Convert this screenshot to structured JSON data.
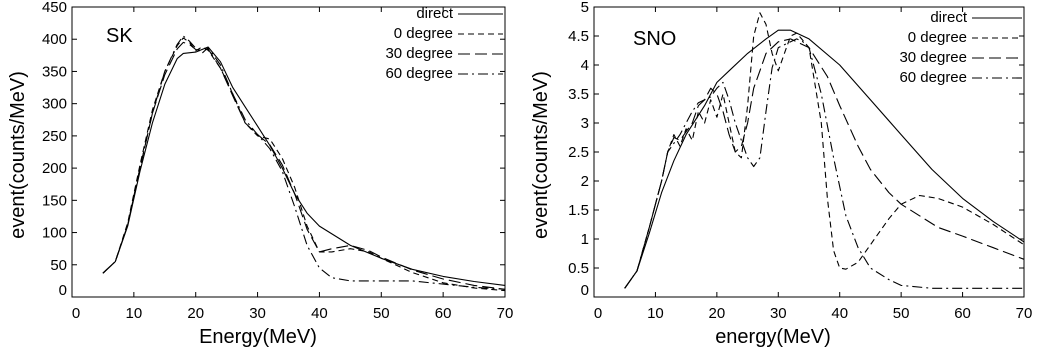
{
  "chart_data": [
    {
      "type": "line",
      "panel_label": "SK",
      "xlabel": "Energy(MeV)",
      "ylabel": "event(counts/MeV)",
      "xlim": [
        0,
        70
      ],
      "ylim": [
        0,
        450
      ],
      "xticks": [
        "0",
        "10",
        "20",
        "30",
        "40",
        "50",
        "60",
        "70"
      ],
      "yticks": [
        "0",
        "50",
        "100",
        "150",
        "200",
        "250",
        "300",
        "350",
        "400",
        "450"
      ],
      "legend_position": "top-right",
      "series": [
        {
          "name": "direct",
          "dash": "solid",
          "points": [
            [
              5,
              37
            ],
            [
              7,
              55
            ],
            [
              9,
              110
            ],
            [
              11,
              195
            ],
            [
              13,
              270
            ],
            [
              15,
              330
            ],
            [
              17,
              370
            ],
            [
              18,
              378
            ],
            [
              20,
              380
            ],
            [
              22,
              388
            ],
            [
              24,
              365
            ],
            [
              26,
              325
            ],
            [
              28,
              295
            ],
            [
              30,
              265
            ],
            [
              32,
              235
            ],
            [
              34,
              200
            ],
            [
              36,
              160
            ],
            [
              38,
              130
            ],
            [
              40,
              110
            ],
            [
              45,
              80
            ],
            [
              50,
              60
            ],
            [
              55,
              43
            ],
            [
              60,
              32
            ],
            [
              65,
              24
            ],
            [
              70,
              18
            ]
          ]
        },
        {
          "name": "0 degree",
          "dash": "short",
          "points": [
            [
              5,
              37
            ],
            [
              7,
              55
            ],
            [
              9,
              115
            ],
            [
              11,
              205
            ],
            [
              13,
              290
            ],
            [
              15,
              350
            ],
            [
              17,
              390
            ],
            [
              18,
              402
            ],
            [
              19,
              395
            ],
            [
              20,
              382
            ],
            [
              21,
              388
            ],
            [
              22,
              383
            ],
            [
              24,
              355
            ],
            [
              26,
              315
            ],
            [
              28,
              270
            ],
            [
              30,
              250
            ],
            [
              32,
              245
            ],
            [
              34,
              215
            ],
            [
              36,
              170
            ],
            [
              38,
              110
            ],
            [
              40,
              70
            ],
            [
              42,
              70
            ],
            [
              45,
              75
            ],
            [
              48,
              70
            ],
            [
              50,
              60
            ],
            [
              55,
              38
            ],
            [
              60,
              22
            ],
            [
              65,
              14
            ],
            [
              70,
              10
            ]
          ]
        },
        {
          "name": "30 degree",
          "dash": "long",
          "points": [
            [
              5,
              37
            ],
            [
              7,
              55
            ],
            [
              9,
              112
            ],
            [
              11,
              200
            ],
            [
              13,
              285
            ],
            [
              15,
              345
            ],
            [
              17,
              385
            ],
            [
              18,
              395
            ],
            [
              19,
              392
            ],
            [
              20,
              384
            ],
            [
              21,
              383
            ],
            [
              22,
              385
            ],
            [
              24,
              355
            ],
            [
              26,
              312
            ],
            [
              28,
              270
            ],
            [
              30,
              252
            ],
            [
              32,
              236
            ],
            [
              34,
              205
            ],
            [
              36,
              160
            ],
            [
              38,
              105
            ],
            [
              40,
              70
            ],
            [
              42,
              75
            ],
            [
              45,
              80
            ],
            [
              48,
              72
            ],
            [
              50,
              62
            ],
            [
              55,
              42
            ],
            [
              60,
              28
            ],
            [
              65,
              18
            ],
            [
              70,
              12
            ]
          ]
        },
        {
          "name": "60 degree",
          "dash": "dashdot",
          "points": [
            [
              5,
              37
            ],
            [
              7,
              55
            ],
            [
              9,
              112
            ],
            [
              11,
              200
            ],
            [
              13,
              285
            ],
            [
              15,
              350
            ],
            [
              17,
              392
            ],
            [
              18,
              405
            ],
            [
              19,
              397
            ],
            [
              20,
              386
            ],
            [
              21,
              378
            ],
            [
              22,
              387
            ],
            [
              24,
              360
            ],
            [
              26,
              315
            ],
            [
              28,
              275
            ],
            [
              30,
              252
            ],
            [
              32,
              230
            ],
            [
              34,
              195
            ],
            [
              36,
              140
            ],
            [
              38,
              80
            ],
            [
              40,
              45
            ],
            [
              42,
              30
            ],
            [
              45,
              25
            ],
            [
              50,
              25
            ],
            [
              55,
              25
            ],
            [
              60,
              20
            ],
            [
              65,
              15
            ],
            [
              70,
              12
            ]
          ]
        }
      ]
    },
    {
      "type": "line",
      "panel_label": "SNO",
      "xlabel": "energy(MeV)",
      "ylabel": "event(counts/MeV)",
      "xlim": [
        0,
        70
      ],
      "ylim": [
        0,
        5
      ],
      "xticks": [
        "0",
        "10",
        "20",
        "30",
        "40",
        "50",
        "60",
        "70"
      ],
      "yticks": [
        "0",
        "0.5",
        "1",
        "1.5",
        "2",
        "2.5",
        "3",
        "3.5",
        "4",
        "4.5",
        "5"
      ],
      "legend_position": "top-right",
      "series": [
        {
          "name": "direct",
          "dash": "solid",
          "points": [
            [
              5,
              0.15
            ],
            [
              7,
              0.45
            ],
            [
              9,
              1.1
            ],
            [
              11,
              1.8
            ],
            [
              13,
              2.35
            ],
            [
              15,
              2.8
            ],
            [
              18,
              3.3
            ],
            [
              20,
              3.7
            ],
            [
              22,
              3.9
            ],
            [
              25,
              4.2
            ],
            [
              28,
              4.45
            ],
            [
              30,
              4.6
            ],
            [
              32,
              4.6
            ],
            [
              35,
              4.45
            ],
            [
              40,
              4.0
            ],
            [
              45,
              3.4
            ],
            [
              50,
              2.8
            ],
            [
              55,
              2.2
            ],
            [
              60,
              1.7
            ],
            [
              65,
              1.3
            ],
            [
              70,
              0.95
            ]
          ]
        },
        {
          "name": "0 degree",
          "dash": "short",
          "points": [
            [
              5,
              0.15
            ],
            [
              7,
              0.45
            ],
            [
              9,
              1.2
            ],
            [
              11,
              2.0
            ],
            [
              12,
              2.5
            ],
            [
              13,
              2.8
            ],
            [
              14,
              2.6
            ],
            [
              15,
              2.9
            ],
            [
              16,
              2.7
            ],
            [
              17,
              3.2
            ],
            [
              18,
              3.0
            ],
            [
              19,
              3.4
            ],
            [
              20,
              3.1
            ],
            [
              21,
              3.5
            ],
            [
              22,
              3.0
            ],
            [
              23,
              2.5
            ],
            [
              24,
              2.4
            ],
            [
              25,
              3.3
            ],
            [
              26,
              4.5
            ],
            [
              27,
              4.9
            ],
            [
              28,
              4.7
            ],
            [
              29,
              4.2
            ],
            [
              30,
              3.9
            ],
            [
              31,
              4.2
            ],
            [
              32,
              4.5
            ],
            [
              33,
              4.55
            ],
            [
              35,
              4.3
            ],
            [
              37,
              3.0
            ],
            [
              38,
              1.7
            ],
            [
              39,
              0.8
            ],
            [
              40,
              0.5
            ],
            [
              41,
              0.48
            ],
            [
              43,
              0.6
            ],
            [
              45,
              0.9
            ],
            [
              48,
              1.35
            ],
            [
              50,
              1.6
            ],
            [
              53,
              1.75
            ],
            [
              56,
              1.7
            ],
            [
              60,
              1.55
            ],
            [
              65,
              1.25
            ],
            [
              70,
              0.9
            ]
          ]
        },
        {
          "name": "30 degree",
          "dash": "long",
          "points": [
            [
              5,
              0.15
            ],
            [
              7,
              0.45
            ],
            [
              9,
              1.2
            ],
            [
              11,
              2.0
            ],
            [
              12,
              2.5
            ],
            [
              13,
              2.75
            ],
            [
              14,
              2.7
            ],
            [
              15,
              2.85
            ],
            [
              16,
              3.0
            ],
            [
              17,
              3.3
            ],
            [
              18,
              3.4
            ],
            [
              19,
              3.6
            ],
            [
              20,
              3.5
            ],
            [
              21,
              3.2
            ],
            [
              22,
              2.8
            ],
            [
              23,
              2.5
            ],
            [
              24,
              2.6
            ],
            [
              25,
              3.0
            ],
            [
              26,
              3.6
            ],
            [
              27,
              3.9
            ],
            [
              28,
              4.2
            ],
            [
              30,
              4.4
            ],
            [
              32,
              4.45
            ],
            [
              35,
              4.3
            ],
            [
              38,
              3.8
            ],
            [
              40,
              3.3
            ],
            [
              43,
              2.6
            ],
            [
              45,
              2.2
            ],
            [
              48,
              1.8
            ],
            [
              50,
              1.6
            ],
            [
              53,
              1.4
            ],
            [
              56,
              1.2
            ],
            [
              60,
              1.05
            ],
            [
              65,
              0.85
            ],
            [
              70,
              0.65
            ]
          ]
        },
        {
          "name": "60 degree",
          "dash": "dashdot",
          "points": [
            [
              5,
              0.15
            ],
            [
              7,
              0.45
            ],
            [
              9,
              1.2
            ],
            [
              11,
              2.0
            ],
            [
              12,
              2.5
            ],
            [
              13,
              2.65
            ],
            [
              14,
              2.8
            ],
            [
              15,
              3.0
            ],
            [
              16,
              3.2
            ],
            [
              17,
              3.35
            ],
            [
              18,
              3.4
            ],
            [
              19,
              3.45
            ],
            [
              20,
              3.6
            ],
            [
              21,
              3.7
            ],
            [
              22,
              3.4
            ],
            [
              23,
              3.0
            ],
            [
              24,
              2.7
            ],
            [
              25,
              2.4
            ],
            [
              26,
              2.25
            ],
            [
              27,
              2.4
            ],
            [
              28,
              3.2
            ],
            [
              29,
              3.95
            ],
            [
              30,
              4.3
            ],
            [
              31,
              4.35
            ],
            [
              32,
              4.4
            ],
            [
              33,
              4.45
            ],
            [
              34,
              4.4
            ],
            [
              35,
              4.3
            ],
            [
              37,
              3.5
            ],
            [
              39,
              2.4
            ],
            [
              41,
              1.4
            ],
            [
              43,
              0.85
            ],
            [
              45,
              0.5
            ],
            [
              48,
              0.3
            ],
            [
              50,
              0.2
            ],
            [
              55,
              0.15
            ],
            [
              60,
              0.15
            ],
            [
              65,
              0.15
            ],
            [
              70,
              0.15
            ]
          ]
        }
      ]
    }
  ]
}
